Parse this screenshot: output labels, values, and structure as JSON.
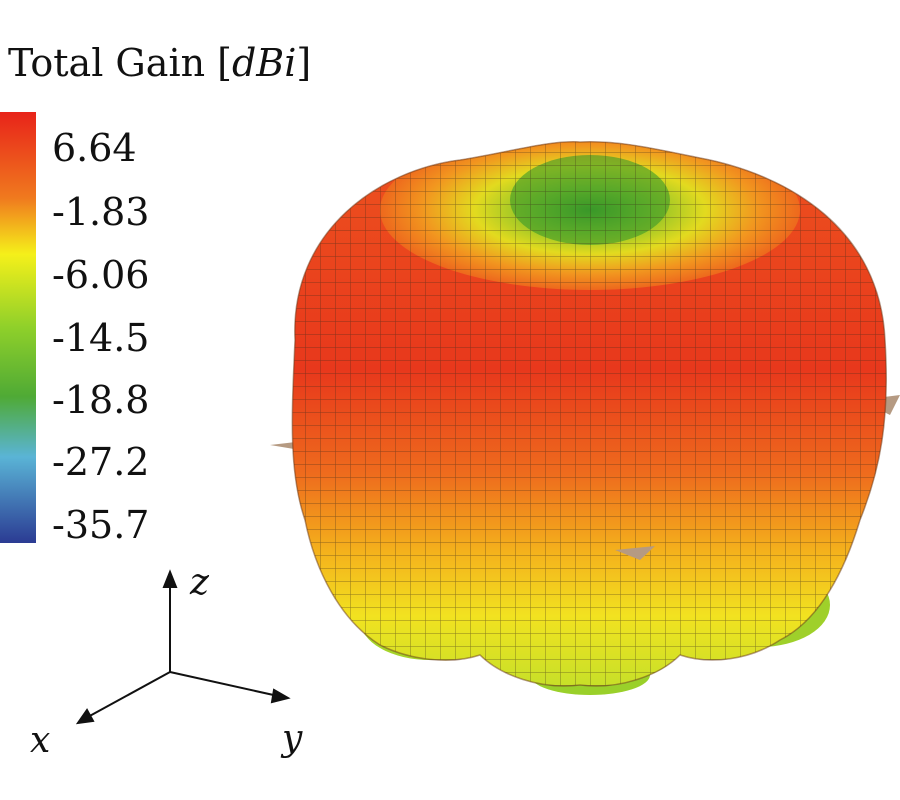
{
  "legend": {
    "title_main": "Total Gain [",
    "title_unit": "dBi",
    "title_close": "]",
    "ticks": [
      "6.64",
      "-1.83",
      "-6.06",
      "-14.5",
      "-18.8",
      "-27.2",
      "-35.7"
    ],
    "colors": [
      "#e8231a",
      "#f07a1e",
      "#f5e21a",
      "#9dd22a",
      "#4faa35",
      "#5ab4d6",
      "#2b3b93"
    ]
  },
  "axes": {
    "x": "x",
    "y": "y",
    "z": "z"
  },
  "pattern": {
    "colors": {
      "top": "#e83a1f",
      "mid": "#ee6a1d",
      "lower": "#f2c51b",
      "bottom": "#c8e02a",
      "lobes": "#8fcc2a"
    }
  }
}
